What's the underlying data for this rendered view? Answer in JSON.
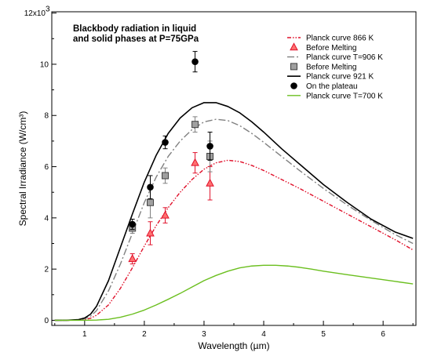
{
  "chart_data": {
    "type": "line",
    "title_lines": [
      "Blackbody radiation in liquid",
      "and solid phases at P=75GPa"
    ],
    "xlabel": "Wavelength (µm)",
    "ylabel": "Spectral Irradiance (W/cm³)",
    "xlim": [
      0.45,
      6.55
    ],
    "ylim": [
      -0.2,
      12.05
    ],
    "x_ticks": [
      1,
      2,
      3,
      4,
      5,
      6
    ],
    "y_ticks": [
      0,
      2,
      4,
      6,
      8,
      10
    ],
    "y_tick_labels": [
      "0",
      "2",
      "4",
      "6",
      "8",
      "10"
    ],
    "y_top_label": {
      "value": 12,
      "text": "12x10",
      "exp": "3"
    },
    "legend": {
      "position": "top-right"
    },
    "curves": [
      {
        "name": "Planck curve 866 K",
        "color": "#e0102a",
        "dash": "dash-dot-dot",
        "width": 1.4,
        "x": [
          0.5,
          0.7,
          0.9,
          1.0,
          1.1,
          1.2,
          1.4,
          1.6,
          1.8,
          2.0,
          2.2,
          2.4,
          2.6,
          2.8,
          3.0,
          3.2,
          3.4,
          3.6,
          3.8,
          4.0,
          4.3,
          4.6,
          5.0,
          5.4,
          5.8,
          6.2,
          6.5
        ],
        "y": [
          0,
          0,
          0.01,
          0.03,
          0.08,
          0.2,
          0.6,
          1.25,
          2.05,
          2.9,
          3.7,
          4.4,
          5.0,
          5.5,
          5.9,
          6.15,
          6.25,
          6.2,
          6.05,
          5.85,
          5.5,
          5.15,
          4.65,
          4.15,
          3.65,
          3.15,
          2.75
        ]
      },
      {
        "name": "Planck curve T=906 K",
        "color": "#808080",
        "dash": "dash-dot",
        "width": 1.4,
        "x": [
          0.5,
          0.7,
          0.9,
          1.0,
          1.1,
          1.2,
          1.4,
          1.6,
          1.8,
          2.0,
          2.2,
          2.4,
          2.6,
          2.8,
          3.0,
          3.2,
          3.4,
          3.6,
          3.8,
          4.0,
          4.3,
          4.6,
          5.0,
          5.4,
          5.8,
          6.2,
          6.5
        ],
        "y": [
          0,
          0,
          0.02,
          0.06,
          0.16,
          0.38,
          1.15,
          2.2,
          3.4,
          4.6,
          5.6,
          6.4,
          7.0,
          7.45,
          7.75,
          7.85,
          7.8,
          7.6,
          7.3,
          6.95,
          6.4,
          5.85,
          5.15,
          4.5,
          3.9,
          3.35,
          3.0
        ]
      },
      {
        "name": "Planck curve 921 K",
        "color": "#000000",
        "dash": "solid",
        "width": 1.6,
        "x": [
          0.5,
          0.7,
          0.9,
          1.0,
          1.1,
          1.2,
          1.4,
          1.6,
          1.8,
          2.0,
          2.2,
          2.4,
          2.6,
          2.8,
          3.0,
          3.2,
          3.4,
          3.6,
          3.8,
          4.0,
          4.3,
          4.6,
          5.0,
          5.4,
          5.8,
          6.2,
          6.5
        ],
        "y": [
          0,
          0,
          0.03,
          0.09,
          0.24,
          0.55,
          1.55,
          2.85,
          4.15,
          5.4,
          6.45,
          7.3,
          7.9,
          8.3,
          8.5,
          8.5,
          8.35,
          8.1,
          7.75,
          7.35,
          6.7,
          6.1,
          5.3,
          4.6,
          3.95,
          3.45,
          3.2
        ]
      },
      {
        "name": "Planck curve T=700 K",
        "color": "#6bbf1f",
        "dash": "solid",
        "width": 1.4,
        "x": [
          0.5,
          1.0,
          1.2,
          1.4,
          1.6,
          1.8,
          2.0,
          2.2,
          2.4,
          2.6,
          2.8,
          3.0,
          3.2,
          3.4,
          3.6,
          3.8,
          4.0,
          4.2,
          4.4,
          4.6,
          4.8,
          5.0,
          5.4,
          5.8,
          6.2,
          6.5
        ],
        "y": [
          0,
          0,
          0.01,
          0.04,
          0.12,
          0.24,
          0.4,
          0.6,
          0.82,
          1.05,
          1.3,
          1.55,
          1.75,
          1.92,
          2.05,
          2.12,
          2.15,
          2.15,
          2.12,
          2.07,
          2.0,
          1.92,
          1.78,
          1.65,
          1.52,
          1.42
        ]
      }
    ],
    "points": [
      {
        "name": "Before Melting",
        "marker": "triangle",
        "fill": "#ff7070",
        "stroke": "#e0102a",
        "errcolor": "#e0102a",
        "x": [
          1.8,
          2.1,
          2.35,
          2.85,
          3.1
        ],
        "y": [
          2.4,
          3.4,
          4.1,
          6.15,
          5.35
        ],
        "err": [
          0.2,
          0.45,
          0.3,
          0.4,
          0.65
        ]
      },
      {
        "name": "Before Melting",
        "marker": "square",
        "fill": "#a0a0a0",
        "stroke": "#404040",
        "errcolor": "#808080",
        "x": [
          1.8,
          2.1,
          2.35,
          2.85,
          3.1
        ],
        "y": [
          3.6,
          4.6,
          5.65,
          7.65,
          6.4
        ],
        "err": [
          0.2,
          0.6,
          0.3,
          0.3,
          0.6
        ]
      },
      {
        "name": "On the plateau",
        "marker": "circle",
        "fill": "#000000",
        "stroke": "#000000",
        "errcolor": "#000000",
        "x": [
          1.8,
          2.1,
          2.35,
          2.85,
          3.1
        ],
        "y": [
          3.75,
          5.2,
          6.95,
          10.1,
          6.8
        ],
        "err": [
          0.2,
          0.45,
          0.25,
          0.4,
          0.55
        ]
      }
    ],
    "legend_order": [
      {
        "kind": "curve",
        "index": 0
      },
      {
        "kind": "points",
        "index": 0
      },
      {
        "kind": "curve",
        "index": 1
      },
      {
        "kind": "points",
        "index": 1
      },
      {
        "kind": "curve",
        "index": 2
      },
      {
        "kind": "points",
        "index": 2
      },
      {
        "kind": "curve",
        "index": 3
      }
    ]
  }
}
